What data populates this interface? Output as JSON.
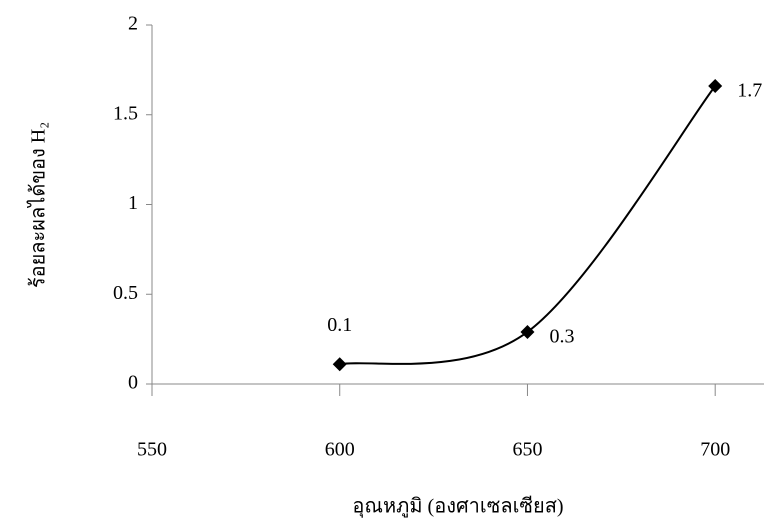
{
  "chart_data": {
    "type": "scatter",
    "x_label": "อุณหภูมิ (องศาเซลเซียส)",
    "y_label": "ร้อยละผลได้ของ H₂",
    "x": [
      600,
      650,
      700
    ],
    "series": [
      {
        "color": "#000000",
        "values": [
          0.11,
          0.29,
          1.66
        ],
        "value_labels": [
          "0.1",
          "0.3",
          "1.7"
        ]
      }
    ],
    "smooth": true,
    "xlim": [
      550,
      713
    ],
    "xticks": [
      550,
      600,
      650,
      700
    ],
    "ylim": [
      0,
      2
    ],
    "yticks": [
      0,
      0.5,
      1,
      1.5,
      2
    ],
    "grid": false
  }
}
